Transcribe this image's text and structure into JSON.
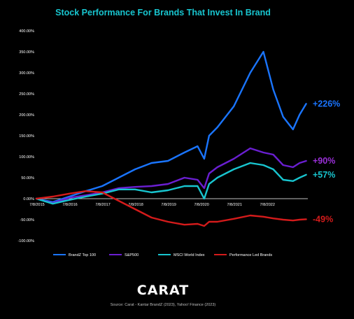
{
  "chart_data": {
    "type": "line",
    "title": "Stock Performance For Brands That Invest In Brand",
    "xlabel": "",
    "ylabel": "",
    "x_ticks": [
      "7/8/2015",
      "7/8/2016",
      "7/8/2017",
      "7/8/2018",
      "7/8/2019",
      "7/8/2020",
      "7/8/2021",
      "7/8/2022"
    ],
    "y_ticks": [
      "400.00%",
      "350.00%",
      "300.00%",
      "250.00%",
      "200.00%",
      "150.00%",
      "100.00%",
      "50.00%",
      "0.00%",
      "-50.00%",
      "-100.00%"
    ],
    "ylim": [
      -100,
      400
    ],
    "grid": false,
    "legend_position": "bottom",
    "x": [
      2015.0,
      2015.5,
      2016.0,
      2016.5,
      2017.0,
      2017.5,
      2018.0,
      2018.5,
      2019.0,
      2019.5,
      2019.9,
      2020.1,
      2020.25,
      2020.5,
      2021.0,
      2021.5,
      2021.9,
      2022.2,
      2022.5,
      2022.8,
      2023.0,
      2023.2
    ],
    "series": [
      {
        "name": "BrandZ Top 100",
        "color": "#1a75ff",
        "values": [
          0,
          -8,
          5,
          18,
          30,
          50,
          70,
          85,
          90,
          110,
          125,
          95,
          150,
          170,
          220,
          300,
          350,
          260,
          195,
          165,
          200,
          226
        ],
        "end_label": "+226%"
      },
      {
        "name": "S&P500",
        "color": "#6a1fd1",
        "values": [
          0,
          -10,
          2,
          8,
          15,
          25,
          28,
          30,
          35,
          50,
          45,
          25,
          60,
          75,
          95,
          120,
          110,
          105,
          80,
          75,
          85,
          90
        ],
        "end_label": "+90%"
      },
      {
        "name": "MSCI World Index",
        "color": "#18c5cf",
        "values": [
          0,
          -12,
          -3,
          5,
          12,
          22,
          22,
          15,
          20,
          30,
          30,
          0,
          35,
          50,
          70,
          85,
          80,
          70,
          45,
          42,
          50,
          57
        ],
        "end_label": "+57%"
      },
      {
        "name": "Performance Led Brands",
        "color": "#d41b1b",
        "values": [
          0,
          5,
          12,
          18,
          15,
          -5,
          -25,
          -45,
          -55,
          -62,
          -60,
          -65,
          -55,
          -55,
          -48,
          -40,
          -43,
          -47,
          -50,
          -52,
          -50,
          -49
        ],
        "end_label": "-49%"
      }
    ]
  },
  "logo": "CARAT",
  "source": "Source: Carat - Kantar BrandZ (2023), Yahoo! Finance (2023)"
}
